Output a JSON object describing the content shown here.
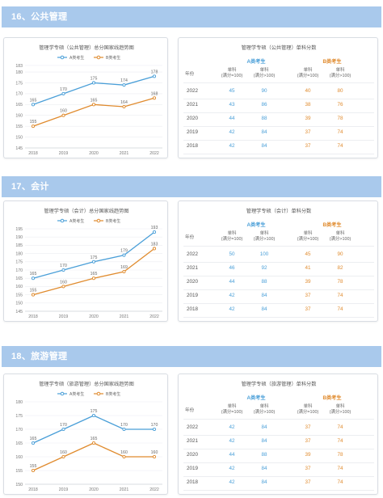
{
  "sections": [
    {
      "header": "16、公共管理",
      "chart": {
        "title": "管理学专硕（公共管理）总分国家线趋势图",
        "legend": {
          "a": "A类考生",
          "b": "B类考生"
        },
        "y_ticks": [
          145,
          150,
          155,
          160,
          165,
          170,
          175,
          180,
          183
        ],
        "x_ticks": [
          "2018",
          "2019",
          "2020",
          "2021",
          "2022"
        ]
      },
      "table": {
        "title": "管理学专硕（公共管理）单科分数",
        "group_a": "A类考生",
        "group_b": "B类考生",
        "year_header": "年份",
        "col_head_line1": "单科",
        "col_head_line2": "(满分=100)",
        "col_head_line3": "单科",
        "col_head_line4": "(满分>100)",
        "rows": [
          {
            "year": "2022",
            "a1": "45",
            "a2": "90",
            "b1": "40",
            "b2": "80"
          },
          {
            "year": "2021",
            "a1": "43",
            "a2": "86",
            "b1": "38",
            "b2": "76"
          },
          {
            "year": "2020",
            "a1": "44",
            "a2": "88",
            "b1": "39",
            "b2": "78"
          },
          {
            "year": "2019",
            "a1": "42",
            "a2": "84",
            "b1": "37",
            "b2": "74"
          },
          {
            "year": "2018",
            "a1": "42",
            "a2": "84",
            "b1": "37",
            "b2": "74"
          }
        ]
      }
    },
    {
      "header": "17、会计",
      "chart": {
        "title": "管理学专硕（会计）总分国家线趋势图",
        "legend": {
          "a": "A类考生",
          "b": "B类考生"
        },
        "y_ticks": [
          145,
          150,
          155,
          160,
          165,
          170,
          175,
          180,
          185,
          190,
          195
        ],
        "x_ticks": [
          "2018",
          "2019",
          "2020",
          "2021",
          "2022"
        ]
      },
      "table": {
        "title": "管理学专硕（会计）单科分数",
        "group_a": "A类考生",
        "group_b": "B类考生",
        "year_header": "年份",
        "col_head_line1": "单科",
        "col_head_line2": "(满分=100)",
        "col_head_line3": "单科",
        "col_head_line4": "(满分>100)",
        "rows": [
          {
            "year": "2022",
            "a1": "50",
            "a2": "100",
            "b1": "45",
            "b2": "90"
          },
          {
            "year": "2021",
            "a1": "46",
            "a2": "92",
            "b1": "41",
            "b2": "82"
          },
          {
            "year": "2020",
            "a1": "44",
            "a2": "88",
            "b1": "39",
            "b2": "78"
          },
          {
            "year": "2019",
            "a1": "42",
            "a2": "84",
            "b1": "37",
            "b2": "74"
          },
          {
            "year": "2018",
            "a1": "42",
            "a2": "84",
            "b1": "37",
            "b2": "74"
          }
        ]
      }
    },
    {
      "header": "18、旅游管理",
      "chart": {
        "title": "管理学专硕（旅游管理）总分国家线趋势图",
        "legend": {
          "a": "A类考生",
          "b": "B类考生"
        },
        "y_ticks": [
          150,
          155,
          160,
          165,
          170,
          175,
          180
        ],
        "x_ticks": [
          "2018",
          "2019",
          "2020",
          "2021",
          "2022"
        ]
      },
      "table": {
        "title": "管理学专硕（旅游管理）单科分数",
        "group_a": "A类考生",
        "group_b": "B类考生",
        "year_header": "年份",
        "col_head_line1": "单科",
        "col_head_line2": "(满分=100)",
        "col_head_line3": "单科",
        "col_head_line4": "(满分>100)",
        "rows": [
          {
            "year": "2022",
            "a1": "42",
            "a2": "84",
            "b1": "37",
            "b2": "74"
          },
          {
            "year": "2021",
            "a1": "42",
            "a2": "84",
            "b1": "37",
            "b2": "74"
          },
          {
            "year": "2020",
            "a1": "44",
            "a2": "88",
            "b1": "39",
            "b2": "78"
          },
          {
            "year": "2019",
            "a1": "42",
            "a2": "84",
            "b1": "37",
            "b2": "74"
          },
          {
            "year": "2018",
            "a1": "42",
            "a2": "84",
            "b1": "37",
            "b2": "74"
          }
        ]
      }
    }
  ],
  "chart_data": [
    {
      "type": "line",
      "title": "管理学专硕（公共管理）总分国家线趋势图",
      "categories": [
        "2018",
        "2019",
        "2020",
        "2021",
        "2022"
      ],
      "series": [
        {
          "name": "A类考生",
          "values": [
            165,
            170,
            175,
            174,
            178
          ]
        },
        {
          "name": "B类考生",
          "values": [
            155,
            160,
            165,
            164,
            168
          ]
        }
      ],
      "ylim": [
        145,
        183
      ],
      "legend": "top-center",
      "grid": true,
      "colors": {
        "a": "#4a9fd8",
        "b": "#e08b2e"
      }
    },
    {
      "type": "line",
      "title": "管理学专硕（会计）总分国家线趋势图",
      "categories": [
        "2018",
        "2019",
        "2020",
        "2021",
        "2022"
      ],
      "series": [
        {
          "name": "A类考生",
          "values": [
            165,
            170,
            175,
            179,
            193
          ]
        },
        {
          "name": "B类考生",
          "values": [
            155,
            160,
            165,
            169,
            183
          ]
        }
      ],
      "ylim": [
        145,
        195
      ],
      "legend": "top-center",
      "grid": true,
      "colors": {
        "a": "#4a9fd8",
        "b": "#e08b2e"
      }
    },
    {
      "type": "line",
      "title": "管理学专硕（旅游管理）总分国家线趋势图",
      "categories": [
        "2018",
        "2019",
        "2020",
        "2021",
        "2022"
      ],
      "series": [
        {
          "name": "A类考生",
          "values": [
            165,
            170,
            175,
            170,
            170
          ]
        },
        {
          "name": "B类考生",
          "values": [
            155,
            160,
            165,
            160,
            160
          ]
        }
      ],
      "ylim": [
        150,
        180
      ],
      "legend": "top-center",
      "grid": true,
      "colors": {
        "a": "#4a9fd8",
        "b": "#e08b2e"
      }
    }
  ]
}
